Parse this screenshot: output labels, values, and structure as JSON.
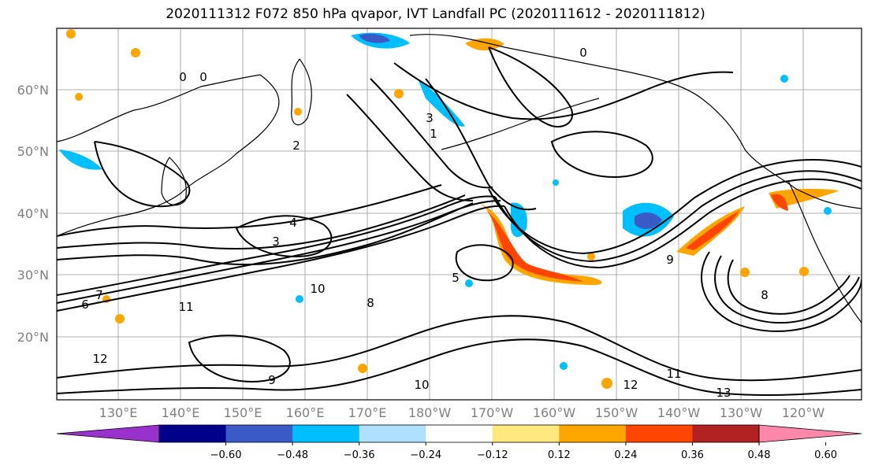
{
  "title": "2020111312 F072 850 hPa qvapor, IVT Landfall PC (2020111612 - 2020111812)",
  "map": {
    "lat_labels": [
      "60°N",
      "50°N",
      "40°N",
      "30°N",
      "20°N"
    ],
    "lat_values": [
      60,
      50,
      40,
      30,
      20
    ],
    "lon_labels": [
      "130°E",
      "140°E",
      "150°E",
      "160°E",
      "170°E",
      "180°W",
      "170°W",
      "160°W",
      "150°W",
      "140°W",
      "130°W",
      "120°W"
    ],
    "contour_labels": [
      "0",
      "0",
      "0",
      "1",
      "2",
      "3",
      "3",
      "4",
      "5",
      "6",
      "7",
      "8",
      "8",
      "9",
      "9",
      "10",
      "10",
      "11",
      "11",
      "12",
      "12",
      "13"
    ]
  },
  "colorbar": {
    "ticks": [
      "−0.60",
      "−0.48",
      "−0.36",
      "−0.24",
      "−0.12",
      "0.12",
      "0.24",
      "0.36",
      "0.48",
      "0.60"
    ],
    "colors": [
      "#9932cc",
      "#00008b",
      "#3a5bc7",
      "#00bfff",
      "#b0e0ff",
      "#ffffff",
      "#ffe97f",
      "#ffa500",
      "#ff4500",
      "#b22222",
      "#ff88aa"
    ]
  }
}
